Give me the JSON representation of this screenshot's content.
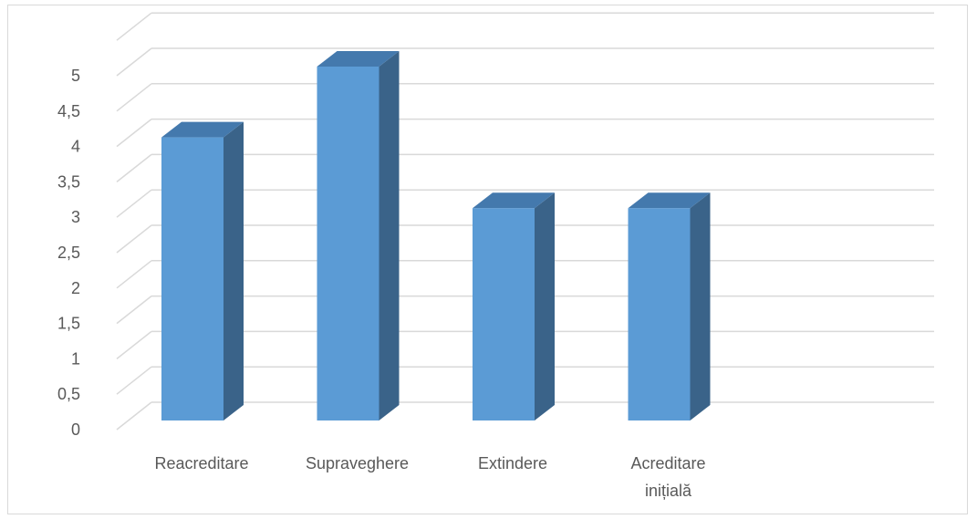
{
  "chart_data": {
    "type": "bar",
    "style": "3d-column",
    "categories": [
      "Reacreditare",
      "Supraveghere",
      "Extindere",
      "Acreditare inițială"
    ],
    "category_lines": [
      [
        "Reacreditare"
      ],
      [
        "Supraveghere"
      ],
      [
        "Extindere"
      ],
      [
        "Acreditare",
        "inițială"
      ]
    ],
    "values": [
      4,
      5,
      3,
      3
    ],
    "ylim": [
      0,
      5.5
    ],
    "yticks": [
      "0",
      "0,5",
      "1",
      "1,5",
      "2",
      "2,5",
      "3",
      "3,5",
      "4",
      "4,5",
      "5"
    ],
    "ytick_values": [
      0,
      0.5,
      1,
      1.5,
      2,
      2.5,
      3,
      3.5,
      4,
      4.5,
      5
    ],
    "grid": true,
    "title": "",
    "xlabel": "",
    "ylabel": "",
    "colors": {
      "front": "#5b9bd5",
      "side": "#3a6389",
      "top": "#4479ad",
      "grid": "#d9d9d9",
      "text": "#595959"
    }
  }
}
